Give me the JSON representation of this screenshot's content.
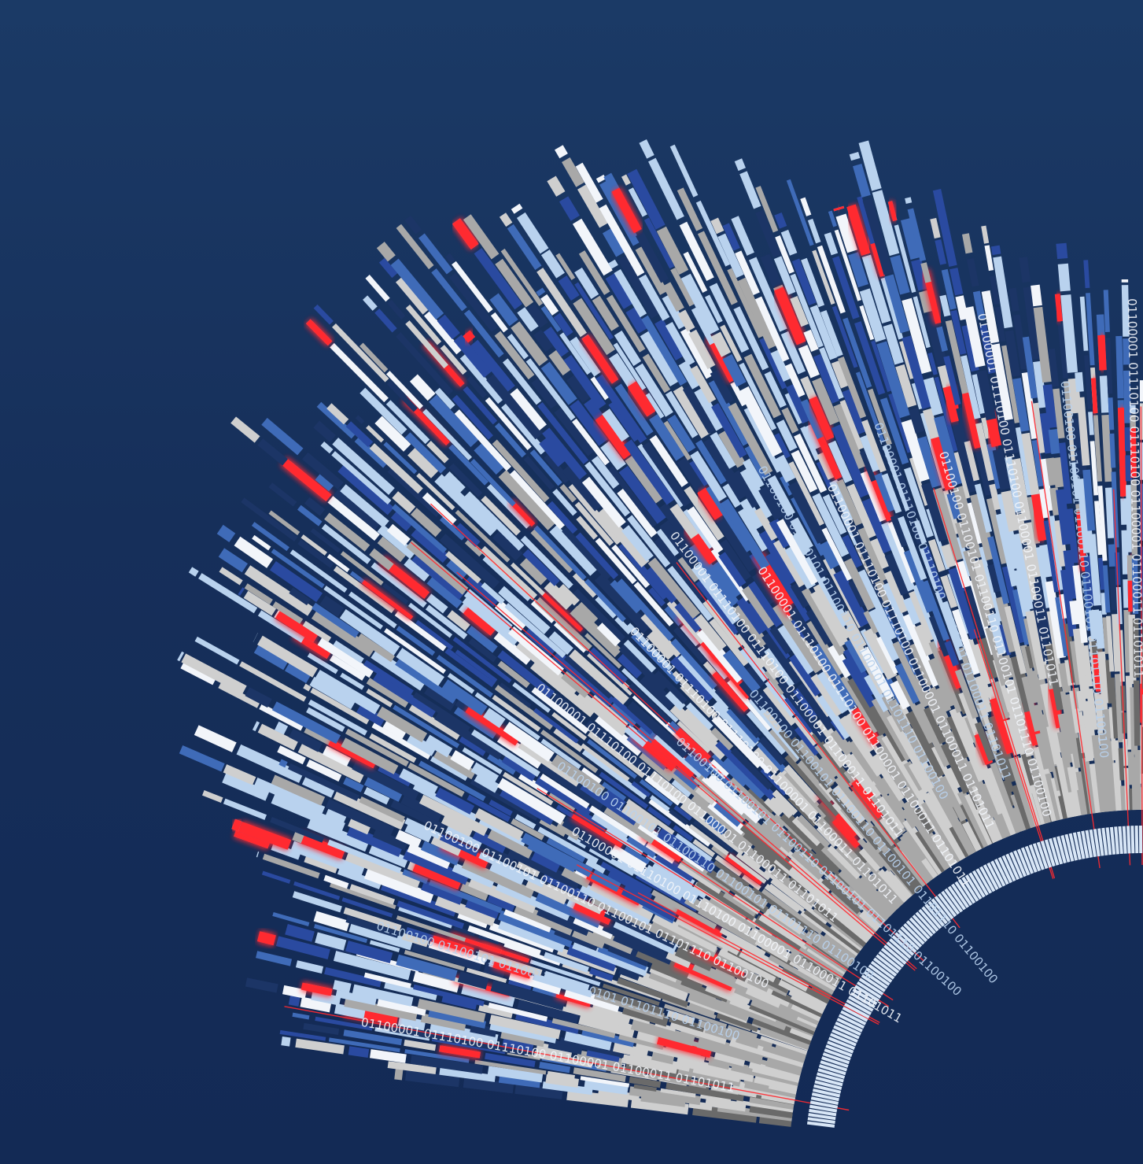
{
  "colors": {
    "background_top": "#1b3a66",
    "background_bottom": "#132a55",
    "white": "#f2f5fa",
    "pale_blue": "#b9d2ee",
    "mid_blue": "#3f6bb8",
    "royal_blue": "#2a4aa0",
    "navy": "#1c3566",
    "grey": "#a8a8a8",
    "light_grey": "#cfcfcf",
    "dark_grey": "#6a6a6a",
    "red": "#ff2a30",
    "inner_ring": "#d8e6f6"
  },
  "binary_labels": [
    "01100001 01110100 01110100 01100001 01100011 01101011",
    "01100100 01100101 01100110 01100101 01101110 01100100",
    "01100100 01100101 01100110 01100101 01101110 01100100",
    "01100001 01110100 01110100 01100001 01100011 01101011",
    "01100100 01100101 01100110 01100101 01101110 01100100",
    "01100001 01110100 01110100 01100001 01100011 01101011",
    "01100100 01100101 01100110 01100101 01101110 01100100",
    "01100001 01110100 01110100 01100001 01100011 01101011",
    "01100100 01100101 01100110 01100101 01101110 01100100",
    "01100001 01110100 01110100 01100001 01100011 01101011",
    "01100001 01110100 01110100 01100001 01100011 01101011",
    "01100100 01100101 01100110 01100101 01101110 01100100",
    "01100001 01110100 01110100 01100001 01100011 01101011",
    "01100001 01110100 01110100 01100001 01100011 01101011",
    "01100100 01100101 01100110 01100101 01101110 01100100",
    "01100001 01110100 01110100 01100001 01100011 01101011",
    "01100100 01100101 01100110 01100101 01101110 01100100",
    "01100001 01110100 01110100 01100001 01100011 01101011"
  ]
}
